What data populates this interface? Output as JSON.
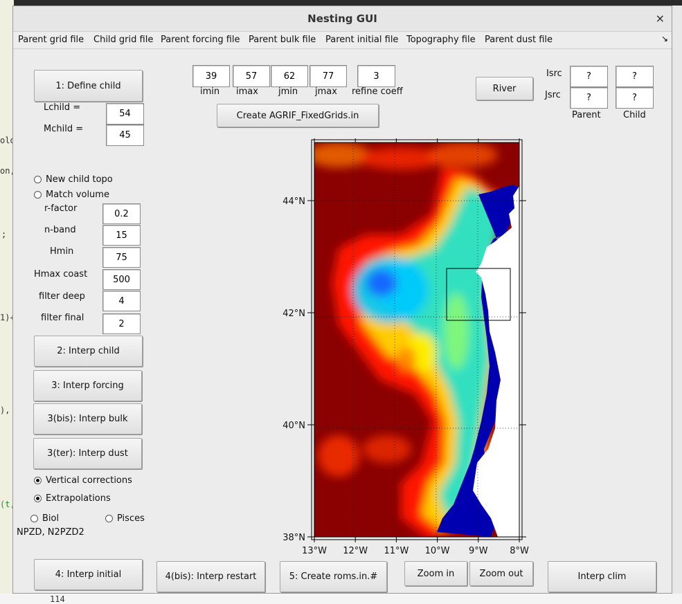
{
  "window": {
    "title": "Nesting GUI",
    "close_glyph": "×"
  },
  "menu": [
    "Parent grid file",
    "Child grid file",
    "Parent forcing file",
    "Parent bulk file",
    "Parent initial file",
    "Topography file",
    "Parent dust file"
  ],
  "menu_overflow": "↘",
  "background_fragments": [
    "olo",
    "on,",
    ";",
    "1)+",
    "),",
    "(t,",
    "114"
  ],
  "child": {
    "define_label": "1: Define child",
    "lchild_label": "Lchild =",
    "lchild_value": "54",
    "mchild_label": "Mchild =",
    "mchild_value": "45"
  },
  "indices": {
    "imin": {
      "label": "imin",
      "value": "39"
    },
    "imax": {
      "label": "imax",
      "value": "57"
    },
    "jmin": {
      "label": "jmin",
      "value": "62"
    },
    "jmax": {
      "label": "jmax",
      "value": "77"
    },
    "refine": {
      "label": "refine coeff",
      "value": "3"
    }
  },
  "create_agrif_label": "Create AGRIF_FixedGrids.in",
  "river": {
    "button": "River",
    "isrc_label": "Isrc",
    "jsrc_label": "Jsrc",
    "parent_label": "Parent",
    "child_label": "Child",
    "parent_isrc": "?",
    "child_isrc": "?",
    "parent_jsrc": "?",
    "child_jsrc": "?"
  },
  "topo": {
    "new_child_topo": "New child topo",
    "match_volume": "Match volume",
    "rfactor_label": "r-factor",
    "rfactor_value": "0.2",
    "nband_label": "n-band",
    "nband_value": "15",
    "hmin_label": "Hmin",
    "hmin_value": "75",
    "hmax_label": "Hmax coast",
    "hmax_value": "500",
    "filter_deep_label": "filter deep",
    "filter_deep_value": "4",
    "filter_final_label": "filter final",
    "filter_final_value": "2"
  },
  "actions": {
    "interp_child": "2: Interp child",
    "interp_forcing": "3: Interp forcing",
    "interp_bulk": "3(bis): Interp bulk",
    "interp_dust": "3(ter): Interp dust",
    "interp_initial": "4: Interp initial",
    "interp_restart": "4(bis): Interp restart",
    "create_romsin": "5: Create roms.in.#",
    "zoom_in": "Zoom in",
    "zoom_out": "Zoom out",
    "interp_clim": "Interp clim"
  },
  "options": {
    "vertical_corrections": "Vertical corrections",
    "extrapolations": "Extrapolations",
    "biol": "Biol",
    "pisces": "Pisces",
    "npzd": "NPZD, N2PZD2"
  },
  "map": {
    "x_ticks": [
      {
        "lon": -13,
        "label": "13°W"
      },
      {
        "lon": -12,
        "label": "12°W"
      },
      {
        "lon": -11,
        "label": "11°W"
      },
      {
        "lon": -10,
        "label": "10°W"
      },
      {
        "lon": -9,
        "label": "9°W"
      },
      {
        "lon": -8,
        "label": "8°W"
      }
    ],
    "y_ticks": [
      {
        "lat": 38,
        "label": "38°N"
      },
      {
        "lat": 40,
        "label": "40°N"
      },
      {
        "lat": 42,
        "label": "42°N"
      },
      {
        "lat": 44,
        "label": "44°N"
      }
    ],
    "lon_range": [
      -13,
      -8
    ],
    "lat_range": [
      38,
      45
    ],
    "child_box": {
      "lon_min": -9.8,
      "lon_max": -8.3,
      "lat_min": 41.9,
      "lat_max": 42.85
    },
    "colors": {
      "deep": "#8b0000",
      "shelf": "#0000a8",
      "land": "#ffffff"
    }
  }
}
